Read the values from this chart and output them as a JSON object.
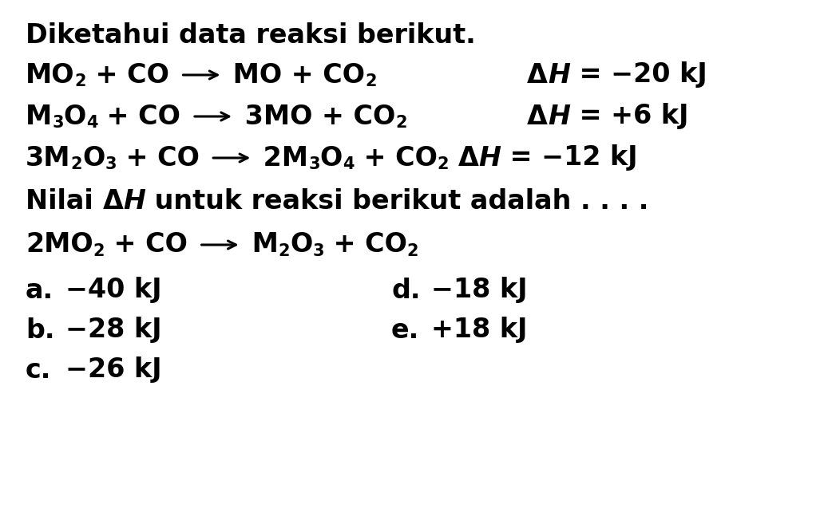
{
  "background_color": "#ffffff",
  "title": "Diketahui data reaksi berikut.",
  "font_family": "DejaVu Sans",
  "font_size": 24,
  "font_size_sub": 15,
  "options": [
    {
      "label": "a.",
      "value": "−40 kJ"
    },
    {
      "label": "b.",
      "value": "−28 kJ"
    },
    {
      "label": "c.",
      "value": "−26 kJ"
    },
    {
      "label": "d.",
      "value": "−18 kJ"
    },
    {
      "label": "e.",
      "value": "+18 kJ"
    }
  ]
}
